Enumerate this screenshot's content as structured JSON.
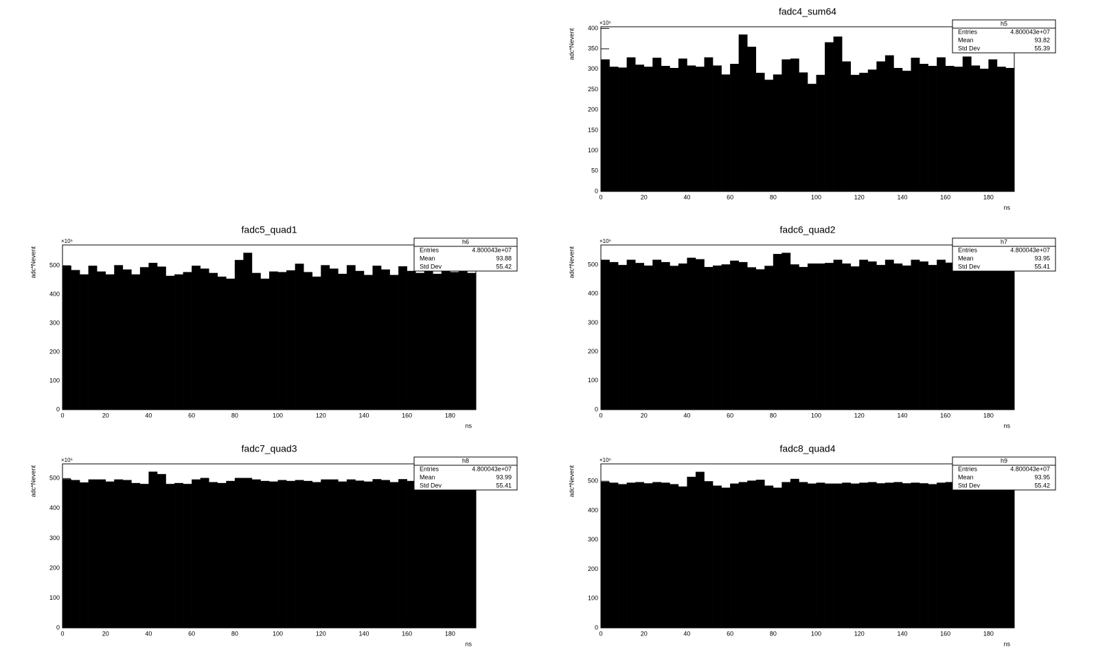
{
  "chart_data": [
    {
      "type": "histogram",
      "title": "fadc4_sum64",
      "x_label": "ns",
      "y_label": "adc*Nevent",
      "y_exponent_label": "×10⁶",
      "color": "#000000",
      "bins": [
        0,
        4,
        8,
        12,
        16,
        20,
        24,
        28,
        32,
        36,
        40,
        44,
        48,
        52,
        56,
        60,
        64,
        68,
        72,
        76,
        80,
        84,
        88,
        92,
        96,
        100,
        104,
        108,
        112,
        116,
        120,
        124,
        128,
        132,
        136,
        140,
        144,
        148,
        152,
        156,
        160,
        164,
        168,
        172,
        176,
        180,
        184,
        188,
        192
      ],
      "values": [
        324,
        306,
        304,
        329,
        311,
        306,
        328,
        308,
        303,
        326,
        309,
        306,
        329,
        309,
        287,
        313,
        385,
        355,
        291,
        274,
        287,
        324,
        326,
        292,
        264,
        286,
        366,
        380,
        319,
        286,
        291,
        299,
        319,
        334,
        303,
        296,
        328,
        313,
        308,
        329,
        308,
        306,
        331,
        309,
        301,
        324,
        306,
        303
      ],
      "xlim": [
        0,
        192
      ],
      "ylim": [
        0,
        404
      ],
      "xticks": [
        0,
        20,
        40,
        60,
        80,
        100,
        120,
        140,
        160,
        180
      ],
      "yticks": [
        0,
        50,
        100,
        150,
        200,
        250,
        300,
        350,
        400
      ],
      "stats": {
        "name": "h5",
        "rows": [
          [
            "Entries",
            "4.800043e+07"
          ],
          [
            "Mean",
            "93.82"
          ],
          [
            "Std Dev",
            "55.39"
          ]
        ]
      }
    },
    {
      "type": "histogram",
      "title": "fadc5_quad1",
      "x_label": "ns",
      "y_label": "adc*Nevent",
      "y_exponent_label": "×10⁶",
      "color": "#000000",
      "bins": [
        0,
        4,
        8,
        12,
        16,
        20,
        24,
        28,
        32,
        36,
        40,
        44,
        48,
        52,
        56,
        60,
        64,
        68,
        72,
        76,
        80,
        84,
        88,
        92,
        96,
        100,
        104,
        108,
        112,
        116,
        120,
        124,
        128,
        132,
        136,
        140,
        144,
        148,
        152,
        156,
        160,
        164,
        168,
        172,
        176,
        180,
        184,
        188,
        192
      ],
      "values": [
        500,
        485,
        470,
        500,
        480,
        470,
        502,
        487,
        470,
        495,
        510,
        497,
        465,
        470,
        478,
        500,
        490,
        475,
        462,
        455,
        520,
        545,
        475,
        455,
        480,
        478,
        484,
        507,
        478,
        462,
        502,
        490,
        472,
        502,
        482,
        468,
        500,
        487,
        468,
        498,
        482,
        475,
        490,
        472,
        485,
        478,
        485,
        475
      ],
      "xlim": [
        0,
        192
      ],
      "ylim": [
        0,
        572
      ],
      "xticks": [
        0,
        20,
        40,
        60,
        80,
        100,
        120,
        140,
        160,
        180
      ],
      "yticks": [
        0,
        100,
        200,
        300,
        400,
        500
      ],
      "stats": {
        "name": "h6",
        "rows": [
          [
            "Entries",
            "4.800043e+07"
          ],
          [
            "Mean",
            "93.88"
          ],
          [
            "Std Dev",
            "55.42"
          ]
        ]
      }
    },
    {
      "type": "histogram",
      "title": "fadc6_quad2",
      "x_label": "ns",
      "y_label": "adc*Nevent",
      "y_exponent_label": "×10⁶",
      "color": "#000000",
      "bins": [
        0,
        4,
        8,
        12,
        16,
        20,
        24,
        28,
        32,
        36,
        40,
        44,
        48,
        52,
        56,
        60,
        64,
        68,
        72,
        76,
        80,
        84,
        88,
        92,
        96,
        100,
        104,
        108,
        112,
        116,
        120,
        124,
        128,
        132,
        136,
        140,
        144,
        148,
        152,
        156,
        160,
        164,
        168,
        172,
        176,
        180,
        184,
        188,
        192
      ],
      "values": [
        518,
        510,
        500,
        518,
        507,
        498,
        518,
        510,
        497,
        505,
        525,
        520,
        493,
        498,
        502,
        515,
        510,
        492,
        485,
        497,
        538,
        542,
        502,
        493,
        505,
        505,
        507,
        518,
        505,
        495,
        518,
        512,
        500,
        518,
        505,
        498,
        518,
        512,
        500,
        518,
        508,
        498,
        515,
        508,
        500,
        512,
        505,
        500
      ],
      "xlim": [
        0,
        192
      ],
      "ylim": [
        0,
        569
      ],
      "xticks": [
        0,
        20,
        40,
        60,
        80,
        100,
        120,
        140,
        160,
        180
      ],
      "yticks": [
        0,
        100,
        200,
        300,
        400,
        500
      ],
      "stats": {
        "name": "h7",
        "rows": [
          [
            "Entries",
            "4.800043e+07"
          ],
          [
            "Mean",
            "93.95"
          ],
          [
            "Std Dev",
            "55.41"
          ]
        ]
      }
    },
    {
      "type": "histogram",
      "title": "fadc7_quad3",
      "x_label": "ns",
      "y_label": "adc*Nevent",
      "y_exponent_label": "×10⁶",
      "color": "#000000",
      "bins": [
        0,
        4,
        8,
        12,
        16,
        20,
        24,
        28,
        32,
        36,
        40,
        44,
        48,
        52,
        56,
        60,
        64,
        68,
        72,
        76,
        80,
        84,
        88,
        92,
        96,
        100,
        104,
        108,
        112,
        116,
        120,
        124,
        128,
        132,
        136,
        140,
        144,
        148,
        152,
        156,
        160,
        164,
        168,
        172,
        176,
        180,
        184,
        188,
        192
      ],
      "values": [
        498,
        495,
        487,
        497,
        497,
        490,
        497,
        495,
        485,
        482,
        523,
        515,
        482,
        485,
        482,
        497,
        502,
        488,
        485,
        492,
        502,
        502,
        497,
        492,
        490,
        495,
        492,
        495,
        492,
        488,
        497,
        497,
        490,
        497,
        493,
        490,
        498,
        495,
        488,
        498,
        492,
        490,
        495,
        490,
        492,
        495,
        490,
        493
      ],
      "xlim": [
        0,
        192
      ],
      "ylim": [
        0,
        549
      ],
      "xticks": [
        0,
        20,
        40,
        60,
        80,
        100,
        120,
        140,
        160,
        180
      ],
      "yticks": [
        0,
        100,
        200,
        300,
        400,
        500
      ],
      "stats": {
        "name": "h8",
        "rows": [
          [
            "Entries",
            "4.800043e+07"
          ],
          [
            "Mean",
            "93.99"
          ],
          [
            "Std Dev",
            "55.41"
          ]
        ]
      }
    },
    {
      "type": "histogram",
      "title": "fadc8_quad4",
      "x_label": "ns",
      "y_label": "adc*Nevent",
      "y_exponent_label": "×10⁶",
      "color": "#000000",
      "bins": [
        0,
        4,
        8,
        12,
        16,
        20,
        24,
        28,
        32,
        36,
        40,
        44,
        48,
        52,
        56,
        60,
        64,
        68,
        72,
        76,
        80,
        84,
        88,
        92,
        96,
        100,
        104,
        108,
        112,
        116,
        120,
        124,
        128,
        132,
        136,
        140,
        144,
        148,
        152,
        156,
        160,
        164,
        168,
        172,
        176,
        180,
        184,
        188,
        192
      ],
      "values": [
        498,
        495,
        490,
        495,
        497,
        493,
        497,
        495,
        490,
        482,
        515,
        532,
        500,
        485,
        478,
        492,
        497,
        502,
        505,
        485,
        478,
        497,
        508,
        497,
        492,
        495,
        492,
        492,
        495,
        492,
        495,
        497,
        493,
        495,
        497,
        493,
        495,
        493,
        490,
        495,
        497,
        495,
        493,
        495,
        497,
        495,
        493,
        495
      ],
      "xlim": [
        0,
        192
      ],
      "ylim": [
        0,
        559
      ],
      "xticks": [
        0,
        20,
        40,
        60,
        80,
        100,
        120,
        140,
        160,
        180
      ],
      "yticks": [
        0,
        100,
        200,
        300,
        400,
        500
      ],
      "stats": {
        "name": "h9",
        "rows": [
          [
            "Entries",
            "4.800043e+07"
          ],
          [
            "Mean",
            "93.95"
          ],
          [
            "Std Dev",
            "55.42"
          ]
        ]
      }
    }
  ]
}
